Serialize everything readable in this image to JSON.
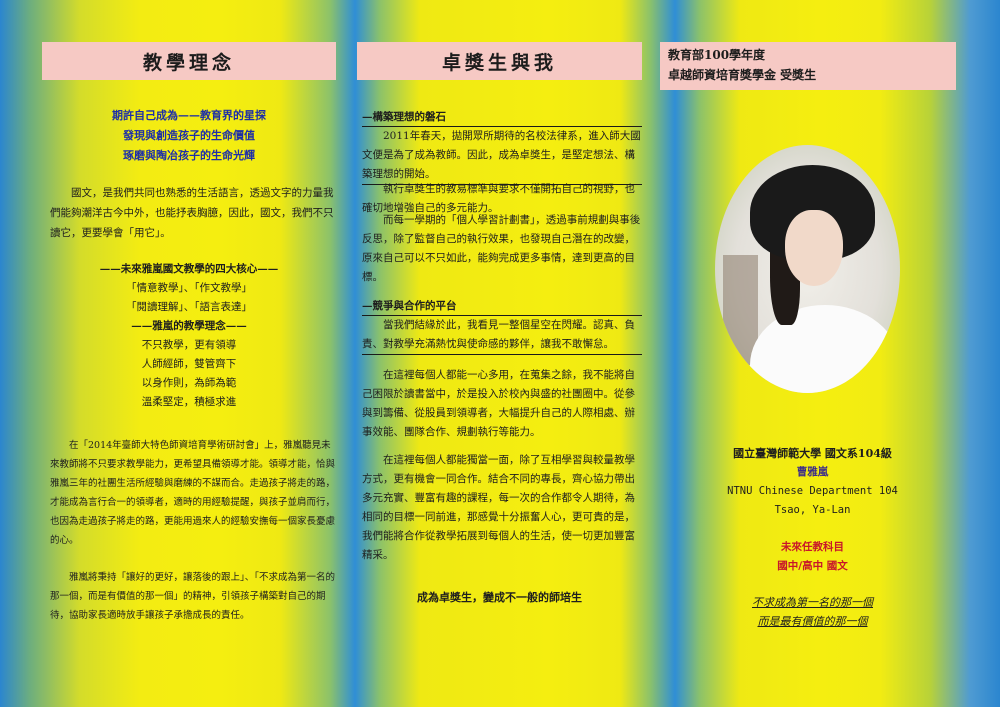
{
  "left": {
    "title": "教學理念",
    "motto": [
      "期許自己成為——教育界的星探",
      "發現與創造孩子的生命價值",
      "琢磨與陶冶孩子的生命光輝"
    ],
    "intro": "國文，是我們共同也熟悉的生活語言，透過文字的力量我們能夠潮洋古今中外，也能抒表胸臆，因此，國文，我們不只讀它，更要學會「用它」。",
    "core_heading": "——未來雅嵐國文教學的四大核心——",
    "core_items": [
      "「情意教學」、「作文教學」",
      "「閱讀理解」、「語言表達」"
    ],
    "idea_heading": "——雅嵐的教學理念——",
    "idea_items": [
      "不只教學，更有領導",
      "人師經師，雙管齊下",
      "以身作則，為師為範",
      "溫柔堅定，積極求進"
    ],
    "para1": "在「2014年臺師大特色師資培育學術研討會」上，雅嵐聽見未來教師將不只要求教學能力，更希望具備領導才能。領導才能，恰與雅嵐三年的社團生活所經驗與磨練的不謀而合。走過孩子將走的路，才能成為言行合一的領導者，適時的用經驗提醒，與孩子並肩而行，也因為走過孩子將走的路，更能用過來人的經驗安撫每一個家長憂慮的心。",
    "para2": "雅嵐將秉持「讓好的更好，讓落後的跟上」、「不求成為第一名的那一個，而是有價值的那一個」的精神，引領孩子構築對自己的期待，協助家長適時放手讓孩子承擔成長的責任。"
  },
  "middle": {
    "title": "卓獎生與我",
    "sec1_heading": "—構築理想的磐石",
    "sec1_p1": "2011年春天，拋開眾所期待的名校法律系，進入師大國文便是為了成為教師。因此，成為卓獎生，是堅定想法、構築理想的開始。",
    "sec1_p2": "執行卓獎生的教易標準與要求不僅開拓自己的視野，也確切地增強自己的多元能力。",
    "sec1_p3": "而每一學期的「個人學習計劃書」，透過事前規劃與事後反思，除了監督自己的執行效果，也發現自己潛在的改變，原來自己可以不只如此，能夠完成更多事情，達到更高的目標。",
    "sec2_heading": "—競爭與合作的平台",
    "sec2_p1": "當我們結緣於此，我看見一整個星空在閃耀。認真、負責、對教學充滿熱忱與使命感的夥伴，讓我不敢懈怠。",
    "sec2_p2": "在這裡每個人都能一心多用，在蒐集之餘，我不能將自己困限於讀書當中，於是投入於校內與盛的社團圈中。從參與到籌備、從股員到領導者，大幅提升自己的人際相處、辦事效能、團隊合作、規劃執行等能力。",
    "sec2_p3": "在這裡每個人都能獨當一面，除了互相學習與較量教學方式，更有機會一同合作。結合不同的專長，齊心協力帶出多元充實、豐富有趣的課程，每一次的合作都令人期待，為相同的目標一同前進，那感覺十分振奮人心，更可貴的是，我們能將合作從教學拓展到每個人的生活，使一切更加豐富精采。",
    "closing": "成為卓獎生，變成不一般的師培生"
  },
  "right": {
    "award_line1": "教育部100學年度",
    "award_line2": "卓越師資培育獎學金 受獎生",
    "school": "國立臺灣師範大學 國文系104級",
    "name": "曹雅嵐",
    "dept_en": "NTNU Chinese Department 104",
    "name_en": "Tsao, Ya-Lan",
    "subject_label": "未來任教科目",
    "subject": "國中/高中 國文",
    "slogan1": "不求成為第一名的那一個",
    "slogan2": "而是最有價值的那一個"
  }
}
